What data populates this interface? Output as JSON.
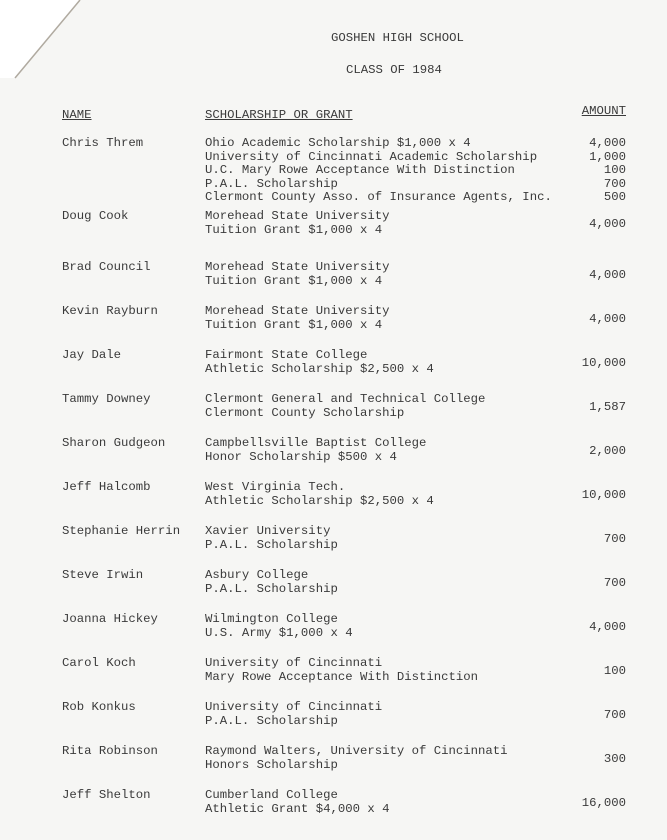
{
  "header": {
    "school": "GOSHEN HIGH SCHOOL",
    "class": "CLASS OF 1984"
  },
  "columns": {
    "name": "NAME",
    "scholarship": "SCHOLARSHIP OR GRANT",
    "amount": "AMOUNT"
  },
  "entries": [
    {
      "name": "Chris Threm",
      "lines": [
        "Ohio Academic Scholarship $1,000 x 4",
        "University of Cincinnati Academic Scholarship",
        "U.C. Mary Rowe Acceptance With Distinction",
        "P.A.L. Scholarship",
        "Clermont County Asso. of Insurance Agents, Inc."
      ],
      "amounts": [
        "4,000",
        "1,000",
        "100",
        "700",
        "500"
      ]
    },
    {
      "name": "Doug Cook",
      "lines": [
        "Morehead State University",
        "Tuition Grant $1,000 x 4"
      ],
      "amounts": [
        "4,000"
      ]
    },
    {
      "name": "Brad Council",
      "lines": [
        "Morehead State University",
        "Tuition Grant $1,000 x 4"
      ],
      "amounts": [
        "4,000"
      ]
    },
    {
      "name": "Kevin Rayburn",
      "lines": [
        "Morehead State University",
        "Tuition Grant $1,000 x 4"
      ],
      "amounts": [
        "4,000"
      ]
    },
    {
      "name": "Jay Dale",
      "lines": [
        "Fairmont State College",
        "Athletic Scholarship $2,500 x 4"
      ],
      "amounts": [
        "10,000"
      ]
    },
    {
      "name": "Tammy Downey",
      "lines": [
        "Clermont General and Technical College",
        "Clermont County Scholarship"
      ],
      "amounts": [
        "1,587"
      ]
    },
    {
      "name": "Sharon Gudgeon",
      "lines": [
        "Campbellsville Baptist College",
        "Honor Scholarship $500 x 4"
      ],
      "amounts": [
        "2,000"
      ]
    },
    {
      "name": "Jeff Halcomb",
      "lines": [
        "West Virginia Tech.",
        "Athletic Scholarship $2,500 x 4"
      ],
      "amounts": [
        "10,000"
      ]
    },
    {
      "name": "Stephanie Herrin",
      "lines": [
        "Xavier University",
        "P.A.L. Scholarship"
      ],
      "amounts": [
        "700"
      ]
    },
    {
      "name": "Steve Irwin",
      "lines": [
        "Asbury College",
        "P.A.L. Scholarship"
      ],
      "amounts": [
        "700"
      ]
    },
    {
      "name": "Joanna Hickey",
      "lines": [
        "Wilmington College",
        "U.S. Army $1,000 x 4"
      ],
      "amounts": [
        "4,000"
      ]
    },
    {
      "name": "Carol Koch",
      "lines": [
        "University of Cincinnati",
        "Mary Rowe Acceptance With Distinction"
      ],
      "amounts": [
        "100"
      ]
    },
    {
      "name": "Rob Konkus",
      "lines": [
        "University of Cincinnati",
        "P.A.L. Scholarship"
      ],
      "amounts": [
        "700"
      ]
    },
    {
      "name": "Rita Robinson",
      "lines": [
        "Raymond Walters, University of Cincinnati",
        "Honors Scholarship"
      ],
      "amounts": [
        "300"
      ]
    },
    {
      "name": "Jeff Shelton",
      "lines": [
        "Cumberland College",
        "Athletic Grant $4,000 x 4"
      ],
      "amounts": [
        "16,000"
      ]
    }
  ]
}
